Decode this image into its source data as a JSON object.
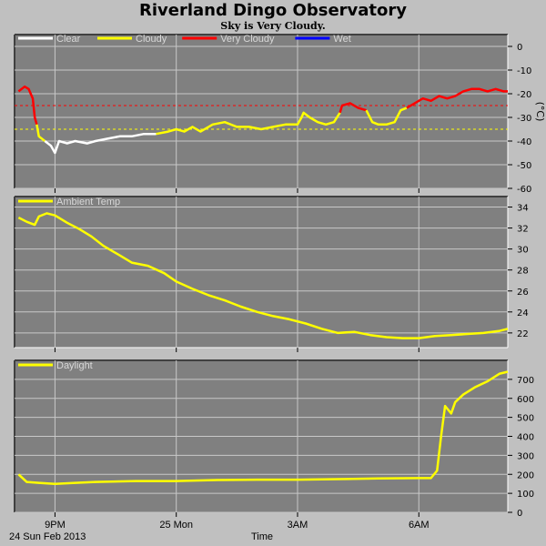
{
  "title": "Riverland Dingo Observatory",
  "subtitle": "Sky is Very Cloudy.",
  "footer": {
    "date_label": "24 Sun Feb 2013",
    "x_axis_title": "Time"
  },
  "x_ticks": [
    {
      "label": "9PM",
      "t": 21.0
    },
    {
      "label": "25 Mon",
      "t": 24.0
    },
    {
      "label": "3AM",
      "t": 27.0
    },
    {
      "label": "6AM",
      "t": 30.0
    }
  ],
  "time_range": [
    20.0,
    32.2
  ],
  "colors": {
    "background": "#c0c0c0",
    "plot_bg": "#808080",
    "grid": "#c8c8c8",
    "clear": "#ffffff",
    "cloudy": "#ffff00",
    "very_cloudy": "#ff0000",
    "wet": "#0000ff"
  },
  "chart_data": [
    {
      "type": "line",
      "name": "cloud",
      "ylabel": "(°C)",
      "ylim": [
        -60,
        5
      ],
      "yticks": [
        0,
        -10,
        -20,
        -30,
        -40,
        -50,
        -60
      ],
      "grid": true,
      "legend": [
        {
          "label": "Clear",
          "color": "#ffffff"
        },
        {
          "label": "Cloudy",
          "color": "#ffff00"
        },
        {
          "label": "Very Cloudy",
          "color": "#ff0000"
        },
        {
          "label": "Wet",
          "color": "#0000ff"
        }
      ],
      "thresholds": [
        {
          "value": -25,
          "color": "#ff0000"
        },
        {
          "value": -35,
          "color": "#ffff00"
        }
      ],
      "series": [
        {
          "color": "#ff0000",
          "points": [
            [
              20.1,
              -19
            ],
            [
              20.25,
              -17
            ],
            [
              20.35,
              -18
            ],
            [
              20.45,
              -22
            ],
            [
              20.5,
              -30
            ],
            [
              20.55,
              -33
            ]
          ]
        },
        {
          "color": "#ffff00",
          "points": [
            [
              20.55,
              -33
            ],
            [
              20.6,
              -38
            ],
            [
              20.75,
              -40
            ]
          ]
        },
        {
          "color": "#ffffff",
          "points": [
            [
              20.75,
              -40
            ],
            [
              20.9,
              -42
            ],
            [
              21.0,
              -45
            ],
            [
              21.1,
              -40
            ],
            [
              21.3,
              -41
            ],
            [
              21.5,
              -40
            ],
            [
              21.8,
              -41
            ],
            [
              22.0,
              -40
            ],
            [
              22.3,
              -39
            ],
            [
              22.6,
              -38
            ],
            [
              22.9,
              -38
            ],
            [
              23.2,
              -37
            ],
            [
              23.5,
              -37
            ]
          ]
        },
        {
          "color": "#ffff00",
          "points": [
            [
              23.5,
              -37
            ],
            [
              23.8,
              -36
            ],
            [
              24.0,
              -35
            ],
            [
              24.2,
              -36
            ],
            [
              24.4,
              -34
            ],
            [
              24.6,
              -36
            ],
            [
              24.9,
              -33
            ],
            [
              25.2,
              -32
            ],
            [
              25.5,
              -34
            ],
            [
              25.8,
              -34
            ],
            [
              26.1,
              -35
            ],
            [
              26.4,
              -34
            ],
            [
              26.7,
              -33
            ],
            [
              27.0,
              -33
            ],
            [
              27.1,
              -30
            ],
            [
              27.15,
              -28
            ],
            [
              27.3,
              -30
            ],
            [
              27.5,
              -32
            ],
            [
              27.7,
              -33
            ],
            [
              27.9,
              -32
            ],
            [
              28.05,
              -28
            ]
          ]
        },
        {
          "color": "#ff0000",
          "points": [
            [
              28.05,
              -28
            ],
            [
              28.1,
              -25
            ],
            [
              28.3,
              -24
            ],
            [
              28.5,
              -26
            ],
            [
              28.7,
              -27
            ]
          ]
        },
        {
          "color": "#ffff00",
          "points": [
            [
              28.7,
              -27
            ],
            [
              28.85,
              -32
            ],
            [
              29.0,
              -33
            ],
            [
              29.2,
              -33
            ],
            [
              29.4,
              -32
            ],
            [
              29.55,
              -27
            ],
            [
              29.7,
              -26
            ]
          ]
        },
        {
          "color": "#ff0000",
          "points": [
            [
              29.7,
              -26
            ],
            [
              29.9,
              -24
            ],
            [
              30.1,
              -22
            ],
            [
              30.3,
              -23
            ],
            [
              30.5,
              -21
            ],
            [
              30.7,
              -22
            ],
            [
              30.9,
              -21
            ],
            [
              31.1,
              -19
            ],
            [
              31.3,
              -18
            ],
            [
              31.5,
              -18
            ],
            [
              31.7,
              -19
            ],
            [
              31.9,
              -18
            ],
            [
              32.1,
              -19
            ],
            [
              32.2,
              -19
            ]
          ]
        }
      ]
    },
    {
      "type": "line",
      "name": "ambient",
      "ylim": [
        20.6,
        35.0
      ],
      "yticks": [
        34,
        32,
        30,
        28,
        26,
        24,
        22
      ],
      "grid": true,
      "legend": [
        {
          "label": "Ambient Temp",
          "color": "#ffff00"
        }
      ],
      "series": [
        {
          "color": "#ffff00",
          "points": [
            [
              20.1,
              33.0
            ],
            [
              20.3,
              32.6
            ],
            [
              20.5,
              32.3
            ],
            [
              20.6,
              33.1
            ],
            [
              20.8,
              33.4
            ],
            [
              21.0,
              33.2
            ],
            [
              21.3,
              32.5
            ],
            [
              21.6,
              31.9
            ],
            [
              21.9,
              31.2
            ],
            [
              22.2,
              30.3
            ],
            [
              22.6,
              29.4
            ],
            [
              22.9,
              28.7
            ],
            [
              23.3,
              28.4
            ],
            [
              23.7,
              27.7
            ],
            [
              24.0,
              26.9
            ],
            [
              24.4,
              26.2
            ],
            [
              24.8,
              25.6
            ],
            [
              25.2,
              25.1
            ],
            [
              25.6,
              24.5
            ],
            [
              26.0,
              24.0
            ],
            [
              26.4,
              23.6
            ],
            [
              26.8,
              23.3
            ],
            [
              27.2,
              22.9
            ],
            [
              27.6,
              22.4
            ],
            [
              28.0,
              22.0
            ],
            [
              28.4,
              22.1
            ],
            [
              28.8,
              21.8
            ],
            [
              29.2,
              21.6
            ],
            [
              29.6,
              21.5
            ],
            [
              30.0,
              21.5
            ],
            [
              30.4,
              21.7
            ],
            [
              30.8,
              21.8
            ],
            [
              31.2,
              21.9
            ],
            [
              31.6,
              22.0
            ],
            [
              32.0,
              22.2
            ],
            [
              32.2,
              22.4
            ]
          ]
        }
      ]
    },
    {
      "type": "line",
      "name": "daylight",
      "ylim": [
        0,
        800
      ],
      "yticks": [
        700,
        600,
        500,
        400,
        300,
        200,
        100,
        0
      ],
      "grid": true,
      "legend": [
        {
          "label": "Daylight",
          "color": "#ffff00"
        }
      ],
      "series": [
        {
          "color": "#ffff00",
          "points": [
            [
              20.1,
              200
            ],
            [
              20.3,
              160
            ],
            [
              20.6,
              155
            ],
            [
              21.0,
              150
            ],
            [
              21.5,
              155
            ],
            [
              22.0,
              160
            ],
            [
              23.0,
              165
            ],
            [
              24.0,
              165
            ],
            [
              25.0,
              170
            ],
            [
              26.0,
              172
            ],
            [
              27.0,
              172
            ],
            [
              28.0,
              175
            ],
            [
              29.0,
              178
            ],
            [
              30.0,
              180
            ],
            [
              30.3,
              180
            ],
            [
              30.45,
              220
            ],
            [
              30.55,
              400
            ],
            [
              30.65,
              560
            ],
            [
              30.8,
              520
            ],
            [
              30.9,
              580
            ],
            [
              31.1,
              620
            ],
            [
              31.4,
              660
            ],
            [
              31.7,
              690
            ],
            [
              32.0,
              730
            ],
            [
              32.2,
              740
            ]
          ]
        }
      ]
    }
  ]
}
